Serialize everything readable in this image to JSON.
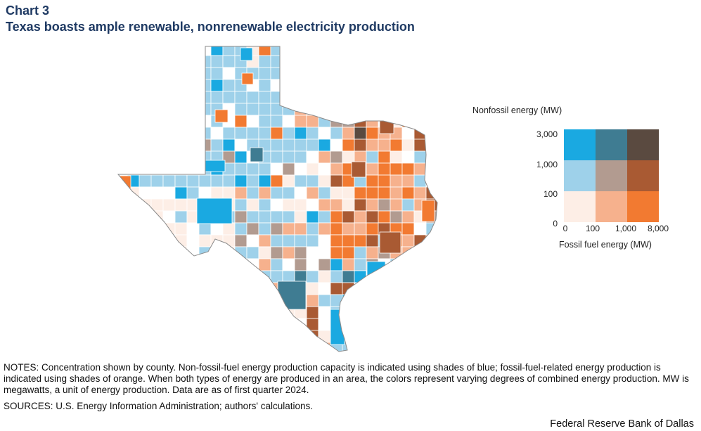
{
  "header": {
    "chart_label": "Chart 3",
    "title": "Texas boasts ample renewable, nonrenewable electricity production"
  },
  "legend": {
    "y_title": "Nonfossil energy (MW)",
    "x_title": "Fossil fuel energy (MW)",
    "y_ticks": [
      "3,000",
      "1,000",
      "100",
      "0"
    ],
    "x_ticks": [
      "0",
      "100",
      "1,000",
      "8,000"
    ],
    "colors": [
      [
        "#1aa9e1",
        "#3f7c92",
        "#5a4a40"
      ],
      [
        "#9ed1ea",
        "#b29b90",
        "#a95a33"
      ],
      [
        "#fdeee6",
        "#f6b18d",
        "#f27a31"
      ]
    ]
  },
  "map_colors": {
    "nodata": "#ffffff",
    "blue3": "#1aa9e1",
    "blue2": "#9ed1ea",
    "cream": "#fdeee6",
    "peach": "#f6b18d",
    "orange": "#f27a31",
    "teal": "#3f7c92",
    "taupe": "#b29b90",
    "brown": "#a95a33",
    "dark": "#5a4a40"
  },
  "notes": "NOTES: Concentration shown by county. Non-fossil-fuel energy production capacity is indicated using shades of blue; fossil-fuel-related energy production is indicated using shades of orange. When both types of energy are produced in an area, the colors represent varying degrees of combined energy production. MW is megawatts, a unit of energy production. Data are as of first quarter 2024.",
  "sources": "SOURCES: U.S. Energy Information Administration;  authors' calculations.",
  "credit": "Federal Reserve Bank of Dallas"
}
